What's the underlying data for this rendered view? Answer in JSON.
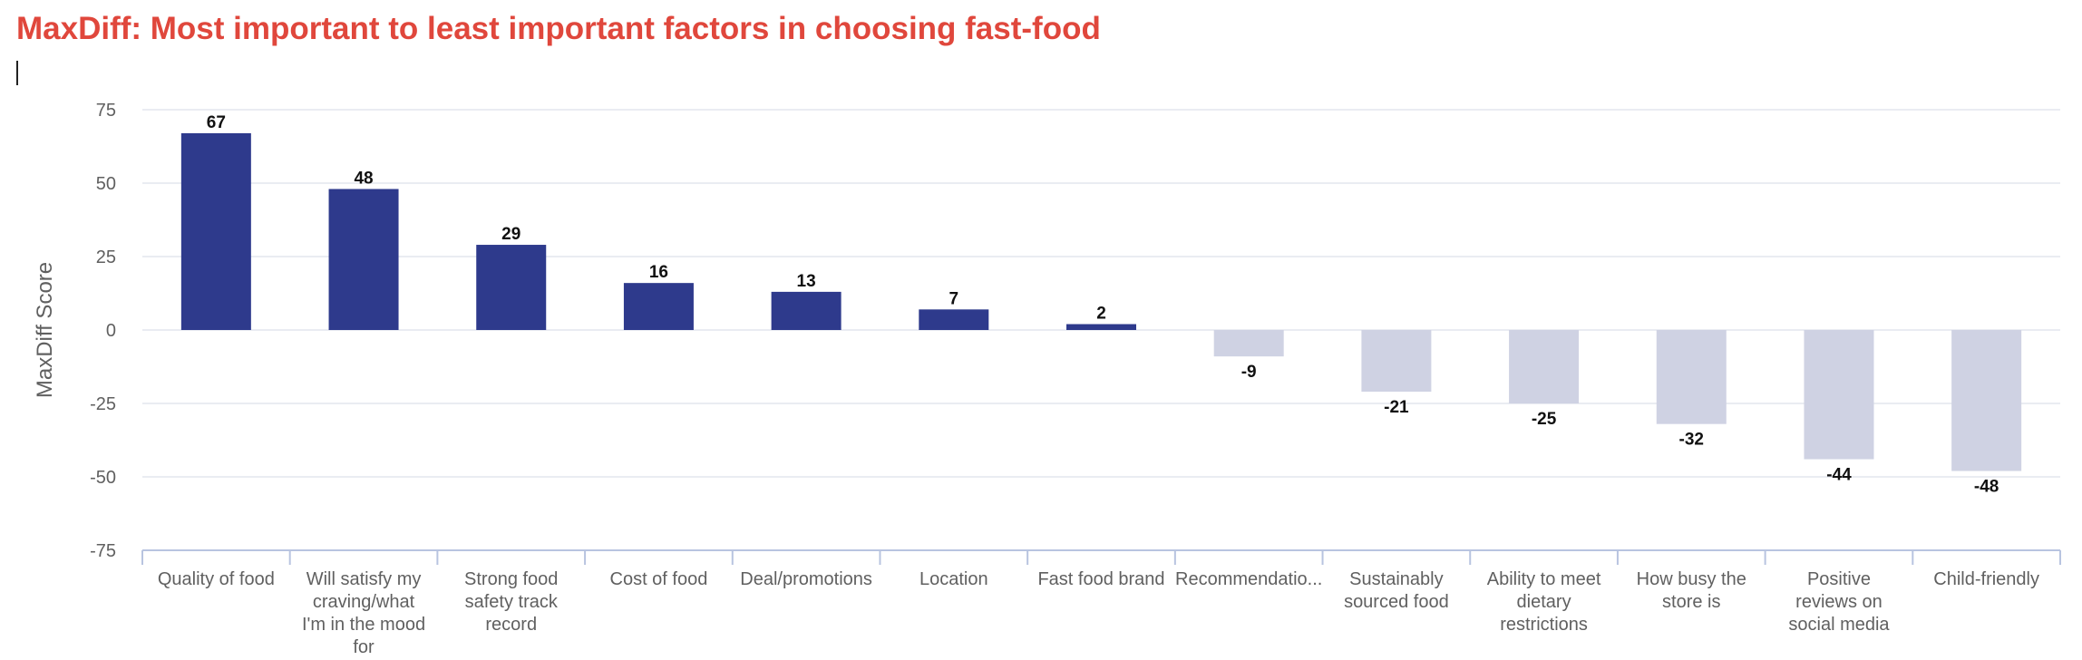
{
  "title": "MaxDiff: Most important to least important factors in choosing fast-food",
  "colors": {
    "title": "#e0473c",
    "positive_bar": "#2e3a8c",
    "negative_bar": "#cfd2e3",
    "gridline": "#e3e6ee",
    "axis": "#b8c4e0",
    "tick_text": "#606060",
    "label_text": "#111111"
  },
  "chart_data": {
    "type": "bar",
    "title": "MaxDiff: Most important to least important factors in choosing fast-food",
    "xlabel": "",
    "ylabel": "MaxDiff Score",
    "ylim": [
      -75,
      75
    ],
    "yticks": [
      75,
      50,
      25,
      0,
      -25,
      -50,
      -75
    ],
    "grid": true,
    "legend": "none",
    "categories": [
      "Quality of food",
      "Will satisfy my craving/what I'm in the mood for",
      "Strong food safety track record",
      "Cost of food",
      "Deal/promotions",
      "Location",
      "Fast food brand",
      "Recommendatio...",
      "Sustainably sourced food",
      "Ability to meet dietary restrictions",
      "How busy the store is",
      "Positive reviews on social media",
      "Child-friendly"
    ],
    "category_label_lines": [
      [
        "Quality of food"
      ],
      [
        "Will satisfy my",
        "craving/what",
        "I'm in the mood",
        "for"
      ],
      [
        "Strong food",
        "safety track",
        "record"
      ],
      [
        "Cost of food"
      ],
      [
        "Deal/promotions"
      ],
      [
        "Location"
      ],
      [
        "Fast food brand"
      ],
      [
        "Recommendatio..."
      ],
      [
        "Sustainably",
        "sourced food"
      ],
      [
        "Ability to meet",
        "dietary",
        "restrictions"
      ],
      [
        "How busy the",
        "store is"
      ],
      [
        "Positive",
        "reviews on",
        "social media"
      ],
      [
        "Child-friendly"
      ]
    ],
    "values": [
      67,
      48,
      29,
      16,
      13,
      7,
      2,
      -9,
      -21,
      -25,
      -32,
      -44,
      -48
    ],
    "data_labels": [
      "67",
      "48",
      "29",
      "16",
      "13",
      "7",
      "2",
      "-9",
      "-21",
      "-25",
      "-32",
      "-44",
      "-48"
    ]
  }
}
